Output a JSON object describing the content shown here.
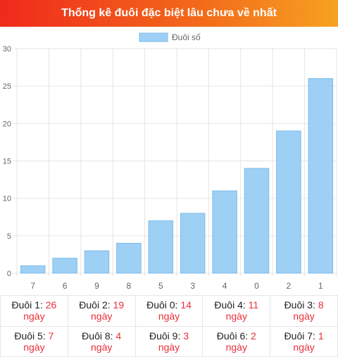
{
  "header": {
    "title": "Thống kê đuôi đặc biệt lâu chưa về nhất"
  },
  "colors": {
    "bar": "#9ecff4",
    "bar_border": "#7dbdeb",
    "grid": "#e5e5e5",
    "accent": "#e8303a"
  },
  "chart_data": {
    "type": "bar",
    "categories": [
      "7",
      "6",
      "9",
      "8",
      "5",
      "3",
      "4",
      "0",
      "2",
      "1"
    ],
    "series": [
      {
        "name": "Đuôi số",
        "values": [
          1,
          2,
          3,
          4,
          7,
          8,
          11,
          14,
          19,
          26
        ]
      }
    ],
    "ylim": [
      0,
      30
    ],
    "yticks": [
      0,
      5,
      10,
      15,
      20,
      25,
      30
    ],
    "grid": true,
    "legend": "top-center"
  },
  "stats": {
    "unit": "ngày",
    "rows": [
      [
        {
          "label": "Đuôi 1:",
          "value": "26"
        },
        {
          "label": "Đuôi 2:",
          "value": "19"
        },
        {
          "label": "Đuôi 0:",
          "value": "14"
        },
        {
          "label": "Đuôi 4:",
          "value": "11"
        },
        {
          "label": "Đuôi 3:",
          "value": "8"
        }
      ],
      [
        {
          "label": "Đuôi 5:",
          "value": "7"
        },
        {
          "label": "Đuôi 8:",
          "value": "4"
        },
        {
          "label": "Đuôi 9:",
          "value": "3"
        },
        {
          "label": "Đuôi 6:",
          "value": "2"
        },
        {
          "label": "Đuôi 7:",
          "value": "1"
        }
      ]
    ]
  }
}
